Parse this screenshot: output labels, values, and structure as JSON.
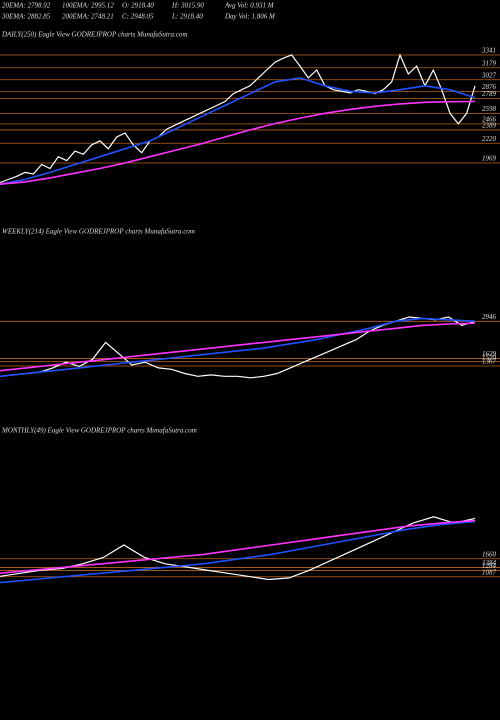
{
  "header": {
    "line1": [
      "20EMA: 2798.92",
      "100EMA: 2995.12",
      "O: 2918.40",
      "H: 3015.90",
      "Avg Vol: 0.931 M"
    ],
    "line2": [
      "30EMA: 2882.85",
      "200EMA: 2748.21",
      "C: 2948.05",
      "L: 2918.40",
      "Day Vol: 1.806 M"
    ]
  },
  "chart_data": [
    {
      "type": "line",
      "title": "DAILY(250) Eagle  View  GODREJPROP charts MunafaSutra.com",
      "ylim": [
        1690,
        3468
      ],
      "yticks": [
        3341,
        3179,
        3027,
        2876,
        2789,
        2598,
        2466,
        2389,
        2220,
        1969
      ],
      "level_color": "#b8641e",
      "series": [
        {
          "color": "#ffffff",
          "values": [
            1720,
            1760,
            1800,
            1850,
            1830,
            1950,
            1900,
            2050,
            2000,
            2120,
            2080,
            2200,
            2250,
            2150,
            2300,
            2350,
            2200,
            2100,
            2250,
            2300,
            2400,
            2450,
            2500,
            2550,
            2600,
            2650,
            2700,
            2750,
            2850,
            2900,
            2950,
            3050,
            3150,
            3250,
            3300,
            3341,
            3200,
            3050,
            3150,
            2950,
            2900,
            2880,
            2860,
            2900,
            2880,
            2850,
            2900,
            3000,
            3341,
            3100,
            3200,
            2950,
            3150,
            2900,
            2600,
            2466,
            2600,
            2948
          ]
        },
        {
          "color": "#2050ff",
          "values": [
            1700,
            1760,
            1850,
            1950,
            2050,
            2150,
            2250,
            2400,
            2550,
            2700,
            2850,
            3000,
            3050,
            2950,
            2880,
            2860,
            2900,
            2950,
            2900,
            2799
          ]
        },
        {
          "color": "#ff33ff",
          "values": [
            1700,
            1730,
            1780,
            1840,
            1900,
            1970,
            2050,
            2130,
            2210,
            2300,
            2390,
            2470,
            2540,
            2600,
            2650,
            2690,
            2720,
            2740,
            2748,
            2750
          ]
        }
      ]
    },
    {
      "type": "line",
      "title": "WEEKLY(214) Eagle  View  GODREJPROP charts MunafaSutra.com",
      "ylim": [
        800,
        3700
      ],
      "yticks": [
        2946,
        1629,
        1520,
        1367
      ],
      "level_color": "#b8641e",
      "series": [
        {
          "color": "#ffffff",
          "values": [
            1000,
            1050,
            1100,
            1150,
            1300,
            1500,
            1350,
            1600,
            2200,
            1800,
            1400,
            1500,
            1300,
            1250,
            1100,
            1000,
            1050,
            1000,
            1000,
            950,
            1000,
            1100,
            1300,
            1500,
            1700,
            1900,
            2100,
            2300,
            2600,
            2800,
            2950,
            3100,
            3050,
            3000,
            3100,
            2800,
            2948
          ]
        },
        {
          "color": "#2050ff",
          "values": [
            1000,
            1100,
            1200,
            1300,
            1400,
            1500,
            1600,
            1700,
            1800,
            1900,
            2000,
            2150,
            2300,
            2500,
            2700,
            2950,
            3050,
            3000,
            2950
          ]
        },
        {
          "color": "#ff33ff",
          "values": [
            1200,
            1300,
            1400,
            1500,
            1600,
            1700,
            1800,
            1900,
            2000,
            2100,
            2200,
            2300,
            2400,
            2500,
            2600,
            2700,
            2800,
            2850,
            2880
          ]
        }
      ]
    },
    {
      "type": "line",
      "title": "MONTHLY(49) Eagle  View  GODREJPROP charts MunafaSutra.com",
      "ylim": [
        600,
        3600
      ],
      "yticks": [
        1660,
        1384,
        1284,
        1087
      ],
      "level_color": "#b8641e",
      "series": [
        {
          "color": "#ffffff",
          "values": [
            1100,
            1200,
            1300,
            1350,
            1500,
            1700,
            2100,
            1700,
            1500,
            1400,
            1300,
            1200,
            1100,
            1000,
            1050,
            1300,
            1600,
            1900,
            2200,
            2500,
            2800,
            3000,
            2800,
            2948
          ]
        },
        {
          "color": "#2050ff",
          "values": [
            900,
            1000,
            1100,
            1200,
            1300,
            1400,
            1500,
            1650,
            1800,
            2000,
            2200,
            2400,
            2600,
            2750,
            2850
          ]
        },
        {
          "color": "#ff33ff",
          "values": [
            1200,
            1300,
            1400,
            1500,
            1600,
            1700,
            1800,
            1950,
            2100,
            2250,
            2400,
            2550,
            2700,
            2800,
            2880
          ]
        }
      ]
    }
  ]
}
